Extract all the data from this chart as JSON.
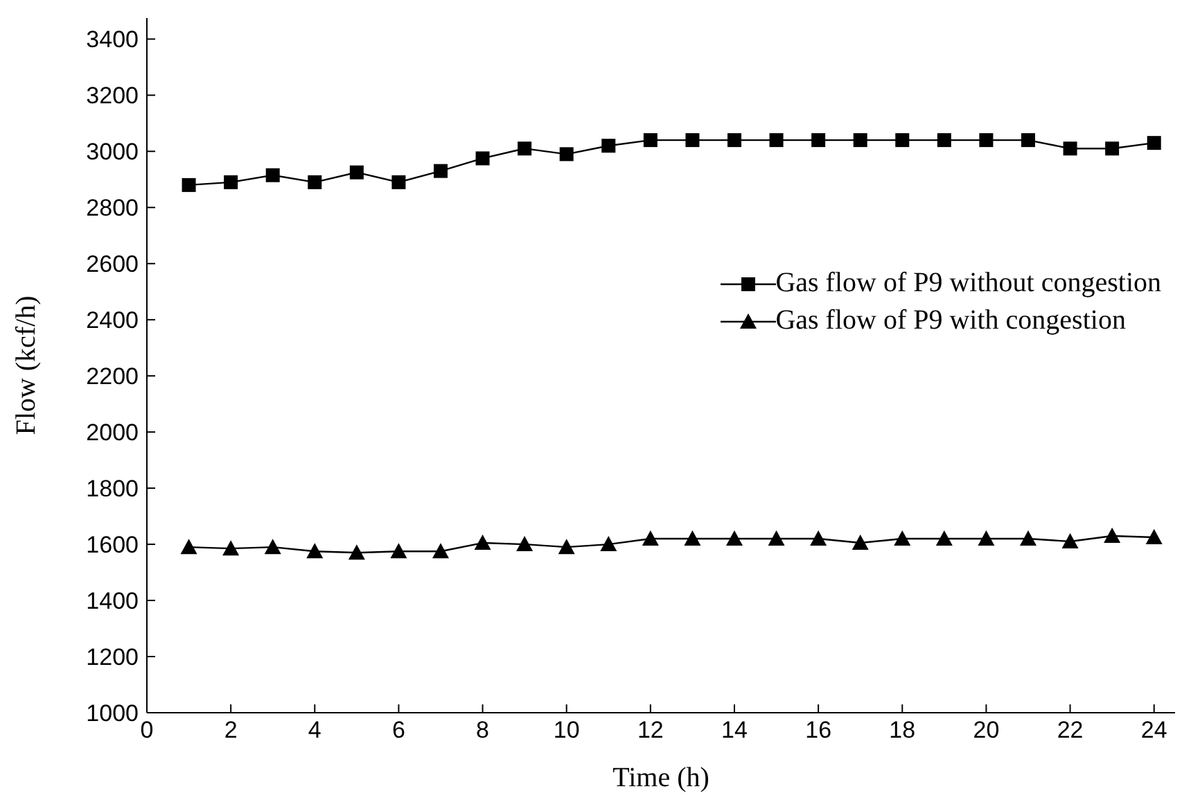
{
  "chart_data": {
    "type": "line",
    "xlabel": "Time (h)",
    "ylabel": "Flow (kcf/h)",
    "x": [
      1,
      2,
      3,
      4,
      5,
      6,
      7,
      8,
      9,
      10,
      11,
      12,
      13,
      14,
      15,
      16,
      17,
      18,
      19,
      20,
      21,
      22,
      23,
      24
    ],
    "xlim": [
      0,
      24.5
    ],
    "xticks": [
      0,
      2,
      4,
      6,
      8,
      10,
      12,
      14,
      16,
      18,
      20,
      22,
      24
    ],
    "ylim": [
      1000,
      3475
    ],
    "yticks": [
      1000,
      1200,
      1400,
      1600,
      1800,
      2000,
      2200,
      2400,
      2600,
      2800,
      3000,
      3200,
      3400
    ],
    "grid": false,
    "legend": "right",
    "line_style": "solid",
    "series": [
      {
        "name": "Gas flow of P9 without congestion",
        "color": "#000000",
        "marker": "square",
        "values": [
          2880,
          2890,
          2915,
          2890,
          2925,
          2890,
          2930,
          2975,
          3010,
          2990,
          3020,
          3040,
          3040,
          3040,
          3040,
          3040,
          3040,
          3040,
          3040,
          3040,
          3040,
          3010,
          3010,
          3030
        ]
      },
      {
        "name": "Gas flow of P9 with congestion",
        "color": "#000000",
        "marker": "triangle",
        "values": [
          1590,
          1585,
          1590,
          1575,
          1570,
          1575,
          1575,
          1605,
          1600,
          1590,
          1600,
          1620,
          1620,
          1620,
          1620,
          1620,
          1605,
          1620,
          1620,
          1620,
          1620,
          1610,
          1630,
          1625
        ]
      }
    ]
  }
}
